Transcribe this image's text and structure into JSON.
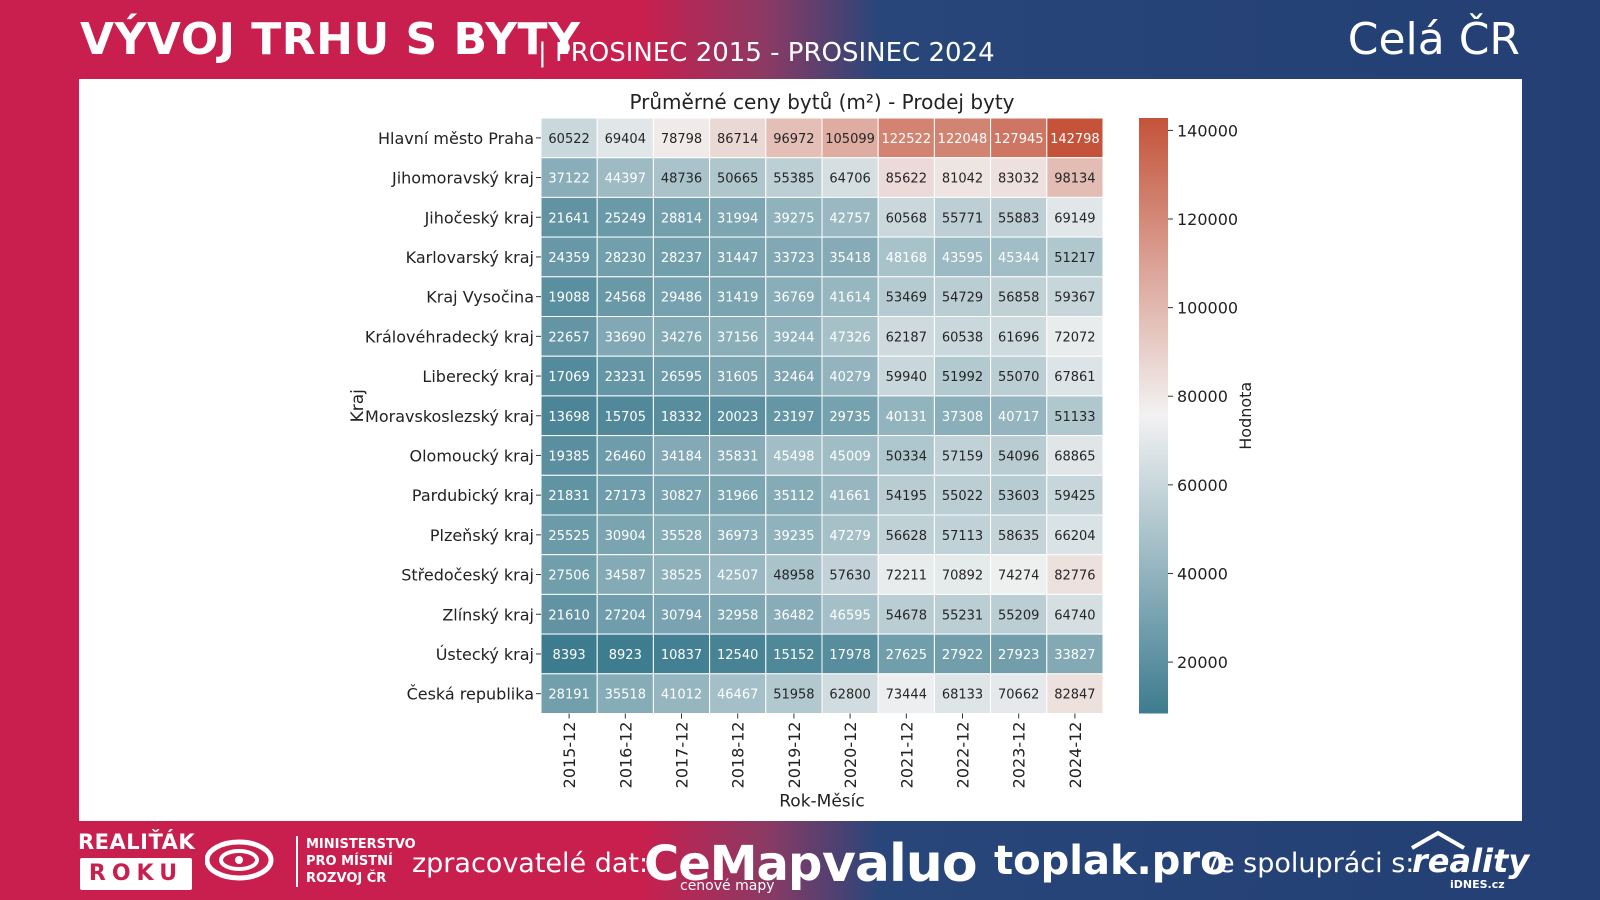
{
  "header": {
    "title": "VÝVOJ TRHU S BYTY",
    "subtitle": "| PROSINEC 2015 - PROSINEC 2024",
    "region": "Celá ČR"
  },
  "chart_data": {
    "type": "heatmap",
    "title": "Průměrné ceny bytů (m²) - Prodej byty",
    "xlabel": "Rok-Měsíc",
    "ylabel": "Kraj",
    "x": [
      "2015-12",
      "2016-12",
      "2017-12",
      "2018-12",
      "2019-12",
      "2020-12",
      "2021-12",
      "2022-12",
      "2023-12",
      "2024-12"
    ],
    "rows": [
      "Hlavní město Praha",
      "Jihomoravský kraj",
      "Jihočeský kraj",
      "Karlovarský kraj",
      "Kraj Vysočina",
      "Královéhradecký kraj",
      "Liberecký kraj",
      "Moravskoslezský kraj",
      "Olomoucký kraj",
      "Pardubický kraj",
      "Plzeňský kraj",
      "Středočeský kraj",
      "Zlínský kraj",
      "Ústecký kraj",
      "Česká republika"
    ],
    "values": [
      [
        60522,
        69404,
        78798,
        86714,
        96972,
        105099,
        122522,
        122048,
        127945,
        142798
      ],
      [
        37122,
        44397,
        48736,
        50665,
        55385,
        64706,
        85622,
        81042,
        83032,
        98134
      ],
      [
        21641,
        25249,
        28814,
        31994,
        39275,
        42757,
        60568,
        55771,
        55883,
        69149
      ],
      [
        24359,
        28230,
        28237,
        31447,
        33723,
        35418,
        48168,
        43595,
        45344,
        51217
      ],
      [
        19088,
        24568,
        29486,
        31419,
        36769,
        41614,
        53469,
        54729,
        56858,
        59367
      ],
      [
        22657,
        33690,
        34276,
        37156,
        39244,
        47326,
        62187,
        60538,
        61696,
        72072
      ],
      [
        17069,
        23231,
        26595,
        31605,
        32464,
        40279,
        59940,
        51992,
        55070,
        67861
      ],
      [
        13698,
        15705,
        18332,
        20023,
        23197,
        29735,
        40131,
        37308,
        40717,
        51133
      ],
      [
        19385,
        26460,
        34184,
        35831,
        45498,
        45009,
        50334,
        57159,
        54096,
        68865
      ],
      [
        21831,
        27173,
        30827,
        31966,
        35112,
        41661,
        54195,
        55022,
        53603,
        59425
      ],
      [
        25525,
        30904,
        35528,
        36973,
        39235,
        47279,
        56628,
        57113,
        58635,
        66204
      ],
      [
        27506,
        34587,
        38525,
        42507,
        48958,
        57630,
        72211,
        70892,
        74274,
        82776
      ],
      [
        21610,
        27204,
        30794,
        32958,
        36482,
        46595,
        54678,
        55231,
        55209,
        64740
      ],
      [
        8393,
        8923,
        10837,
        12540,
        15152,
        17978,
        27625,
        27922,
        27923,
        33827
      ],
      [
        28191,
        35518,
        41012,
        46467,
        51958,
        62800,
        73444,
        68133,
        70662,
        82847
      ]
    ],
    "colorbar": {
      "label": "Hodnota",
      "ticks": [
        20000,
        40000,
        60000,
        80000,
        100000,
        120000,
        140000
      ],
      "range": [
        8393,
        142798
      ],
      "colors": [
        "#3d7c8f",
        "#f2f2f2",
        "#c4533a"
      ]
    }
  },
  "footer": {
    "realitak": "REALIŤÁK",
    "roku": "ROKU",
    "ministry": [
      "MINISTERSTVO",
      "PRO MÍSTNÍ",
      "ROZVOJ ČR"
    ],
    "zpracovatele": "zpracovatelé dat:",
    "cemap": "CeMap",
    "cemap_sub": "cenové mapy",
    "valuo": "valuo",
    "toplak": "toplak.pro",
    "spoluprace": "ve spolupráci s:",
    "reality": "reality",
    "reality_sub": "iDNES.cz"
  }
}
